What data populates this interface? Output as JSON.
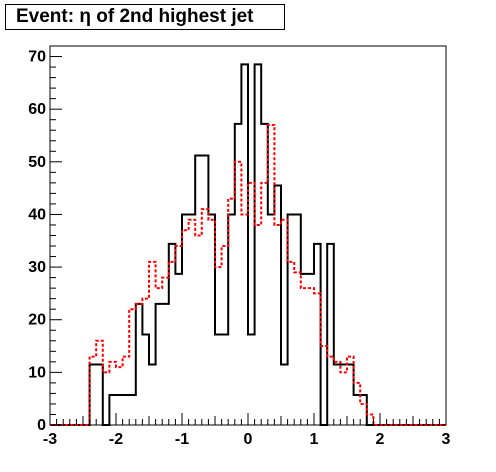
{
  "title": "Event: η of 2nd highest jet",
  "chart_data": {
    "type": "histogram",
    "title": "Event: η of 2nd highest jet",
    "xlim": [
      -3,
      3
    ],
    "ylim": [
      0,
      72
    ],
    "x_ticks": [
      "-3",
      "-2",
      "-1",
      "0",
      "1",
      "2",
      "3"
    ],
    "y_ticks": [
      "0",
      "10",
      "20",
      "30",
      "40",
      "50",
      "60",
      "70"
    ],
    "bin_edges": [
      -3.0,
      -2.9,
      -2.8,
      -2.7,
      -2.6,
      -2.5,
      -2.4,
      -2.3,
      -2.2,
      -2.1,
      -2.0,
      -1.9,
      -1.8,
      -1.7,
      -1.6,
      -1.5,
      -1.4,
      -1.3,
      -1.2,
      -1.1,
      -1.0,
      -0.9,
      -0.8,
      -0.7,
      -0.6,
      -0.5,
      -0.4,
      -0.3,
      -0.2,
      -0.1,
      0.0,
      0.1,
      0.2,
      0.3,
      0.4,
      0.5,
      0.6,
      0.7,
      0.8,
      0.9,
      1.0,
      1.1,
      1.2,
      1.3,
      1.4,
      1.5,
      1.6,
      1.7,
      1.8,
      1.9,
      2.0,
      2.1,
      2.2,
      2.3,
      2.4,
      2.5,
      2.6,
      2.7,
      2.8,
      2.9,
      3.0
    ],
    "series": [
      {
        "color": "#000000",
        "style": "solid",
        "values": [
          0,
          0,
          0,
          0,
          0,
          0,
          11.5,
          11.5,
          0,
          5.7,
          5.7,
          5.7,
          5.7,
          23,
          17.2,
          11.5,
          23,
          23,
          34.4,
          28.7,
          40,
          40,
          51.2,
          51.2,
          40,
          17.2,
          17.2,
          40,
          57.2,
          68.5,
          17.2,
          68.5,
          57.2,
          40,
          45.5,
          11.5,
          40,
          40,
          28.7,
          28.7,
          34.4,
          0,
          34.4,
          11.5,
          11.5,
          11.5,
          5.7,
          5.7,
          0,
          0,
          0,
          0,
          0,
          0,
          0,
          0,
          0,
          0,
          0,
          0
        ]
      },
      {
        "color": "#ff0000",
        "style": "dashed",
        "values": [
          0,
          0,
          0,
          0,
          0,
          0,
          13,
          16,
          10,
          12,
          11,
          13,
          22,
          23,
          24,
          31,
          26,
          28,
          31,
          34,
          37,
          39,
          36,
          41,
          39,
          30,
          34,
          43,
          50,
          40,
          46,
          38,
          46,
          57,
          38,
          39,
          31,
          29,
          26,
          26,
          25,
          15,
          13,
          12,
          10,
          13,
          8,
          4,
          2,
          0,
          0,
          0,
          0,
          0,
          0,
          0,
          0,
          0,
          0,
          0
        ]
      }
    ],
    "grid": false,
    "legend": "none"
  }
}
